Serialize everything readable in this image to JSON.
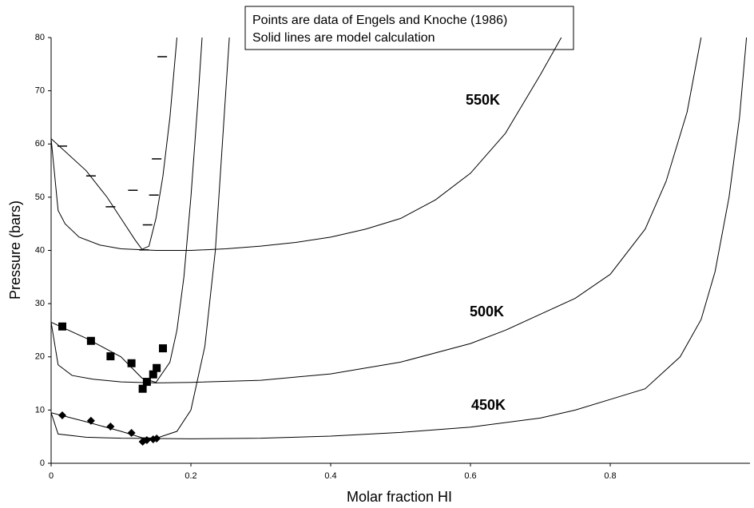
{
  "chart_data": {
    "type": "line",
    "notes": [
      "Points are data of Engels and Knoche (1986)",
      "Solid lines are model calculation"
    ],
    "annotations": [
      "550K",
      "500K",
      "450K"
    ],
    "x_label": "Molar fraction HI",
    "y_label": "Pressure (bars)",
    "xlim": [
      0,
      1
    ],
    "ylim": [
      0,
      80
    ],
    "xticks": [
      0,
      0.2,
      0.4,
      0.6,
      0.8
    ],
    "yticks": [
      0,
      10,
      20,
      30,
      40,
      50,
      60,
      70,
      80
    ],
    "grid": false,
    "series": [
      {
        "color": "#000000",
        "marker": "none",
        "x": [
          0,
          0.01,
          0.02,
          0.04,
          0.07,
          0.1,
          0.15,
          0.2,
          0.25,
          0.3,
          0.35,
          0.4,
          0.45,
          0.5,
          0.55,
          0.6,
          0.65,
          0.7,
          0.73
        ],
        "values": [
          61,
          47.5,
          45,
          42.5,
          41,
          40.3,
          40,
          40,
          40.3,
          40.8,
          41.5,
          42.5,
          44,
          46,
          49.5,
          54.5,
          62,
          73,
          80
        ]
      },
      {
        "color": "#000000",
        "marker": "none",
        "x": [
          0,
          0.05,
          0.08,
          0.1,
          0.12,
          0.13,
          0.14,
          0.15,
          0.16,
          0.17,
          0.18
        ],
        "values": [
          61,
          55,
          50,
          46,
          42,
          40.2,
          40.8,
          46,
          54,
          65,
          80
        ]
      },
      {
        "color": "#000000",
        "marker": "none",
        "x": [
          0,
          0.01,
          0.03,
          0.06,
          0.1,
          0.15,
          0.2,
          0.3,
          0.4,
          0.5,
          0.6,
          0.65,
          0.7,
          0.75,
          0.8,
          0.85,
          0.88,
          0.91,
          0.93
        ],
        "values": [
          26.5,
          18.5,
          16.5,
          15.8,
          15.3,
          15.1,
          15.2,
          15.6,
          16.8,
          19,
          22.5,
          25,
          28,
          31,
          35.5,
          44,
          53,
          66,
          80
        ]
      },
      {
        "color": "#000000",
        "marker": "none",
        "x": [
          0,
          0.05,
          0.1,
          0.13,
          0.15,
          0.17,
          0.18,
          0.19,
          0.2,
          0.21,
          0.216
        ],
        "values": [
          26.5,
          23.5,
          20,
          16,
          15.2,
          19,
          25,
          35,
          50,
          68,
          80
        ]
      },
      {
        "color": "#000000",
        "marker": "none",
        "x": [
          0,
          0.01,
          0.05,
          0.1,
          0.2,
          0.3,
          0.4,
          0.5,
          0.6,
          0.7,
          0.75,
          0.8,
          0.85,
          0.9,
          0.93,
          0.95,
          0.97,
          0.985,
          0.995
        ],
        "values": [
          9.5,
          5.5,
          4.9,
          4.7,
          4.6,
          4.7,
          5.1,
          5.8,
          6.8,
          8.5,
          10,
          12,
          14,
          20,
          27,
          36,
          50,
          65,
          80
        ]
      },
      {
        "color": "#000000",
        "marker": "none",
        "x": [
          0,
          0.05,
          0.1,
          0.13,
          0.15,
          0.18,
          0.2,
          0.22,
          0.235,
          0.245,
          0.255
        ],
        "values": [
          9.5,
          7.8,
          6,
          4.8,
          4.7,
          6,
          10,
          22,
          40,
          60,
          80
        ]
      },
      {
        "color": "#000000",
        "marker": "dash",
        "x": [
          0.016,
          0.057,
          0.085,
          0.117,
          0.133,
          0.138,
          0.147,
          0.151,
          0.159
        ],
        "values": [
          59.6,
          54,
          48.2,
          51.3,
          40.1,
          44.8,
          50.4,
          57.2,
          76.4
        ]
      },
      {
        "color": "#000000",
        "marker": "square",
        "x": [
          0.016,
          0.057,
          0.085,
          0.115,
          0.131,
          0.137,
          0.146,
          0.151,
          0.16
        ],
        "values": [
          25.7,
          23,
          20.1,
          18.8,
          14,
          15.3,
          16.7,
          17.9,
          21.6
        ]
      },
      {
        "color": "#000000",
        "marker": "diamond",
        "x": [
          0.016,
          0.057,
          0.085,
          0.115,
          0.131,
          0.137,
          0.146,
          0.151
        ],
        "values": [
          9,
          8,
          6.9,
          5.7,
          4.05,
          4.35,
          4.5,
          4.65
        ]
      }
    ]
  }
}
